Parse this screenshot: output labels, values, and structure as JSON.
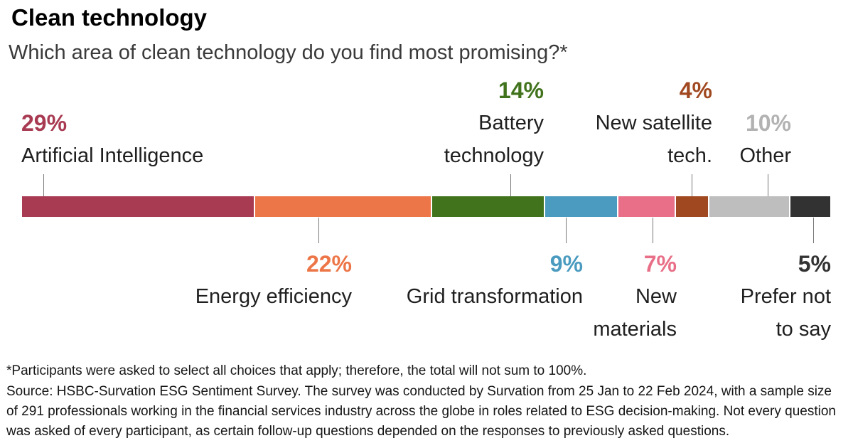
{
  "chart_data": {
    "type": "bar",
    "variant": "horizontal-stacked-single-bar",
    "title": "Clean technology",
    "subtitle": "Which area of clean technology do you find most promising?*",
    "unit": "%",
    "categories": [
      "Artificial Intelligence",
      "Energy efficiency",
      "Battery technology",
      "Grid transformation",
      "New materials",
      "New satellite tech.",
      "Other",
      "Prefer not to say"
    ],
    "values": [
      29,
      22,
      14,
      9,
      7,
      4,
      10,
      5
    ],
    "legend_position": "none",
    "axes": "none",
    "grid": false,
    "label_positions": [
      "above",
      "below",
      "above",
      "below",
      "below",
      "above",
      "above",
      "below"
    ]
  },
  "segments": [
    {
      "name": "Artificial Intelligence",
      "value": 29,
      "pct_label": "29%",
      "color": "#a83a52",
      "label_color": "#a83a52",
      "lines": [
        "Artificial Intelligence"
      ]
    },
    {
      "name": "Energy efficiency",
      "value": 22,
      "pct_label": "22%",
      "color": "#ed7648",
      "label_color": "#ed7648",
      "lines": [
        "Energy efficiency"
      ]
    },
    {
      "name": "Battery technology",
      "value": 14,
      "pct_label": "14%",
      "color": "#41731d",
      "label_color": "#41731d",
      "lines": [
        "Battery",
        "technology"
      ]
    },
    {
      "name": "Grid transformation",
      "value": 9,
      "pct_label": "9%",
      "color": "#4a9bbf",
      "label_color": "#4a9bbf",
      "lines": [
        "Grid transformation"
      ]
    },
    {
      "name": "New materials",
      "value": 7,
      "pct_label": "7%",
      "color": "#e86f87",
      "label_color": "#e86f87",
      "lines": [
        "New",
        "materials"
      ]
    },
    {
      "name": "New satellite tech.",
      "value": 4,
      "pct_label": "4%",
      "color": "#a04820",
      "label_color": "#a04820",
      "lines": [
        "New satellite",
        "tech."
      ]
    },
    {
      "name": "Other",
      "value": 10,
      "pct_label": "10%",
      "color": "#bebebe",
      "label_color": "#b2b2b2",
      "lines": [
        "Other"
      ]
    },
    {
      "name": "Prefer not to say",
      "value": 5,
      "pct_label": "5%",
      "color": "#323232",
      "label_color": "#333333",
      "lines": [
        "Prefer not",
        "to say"
      ]
    }
  ],
  "footer": {
    "footnote": "*Participants were asked to select all choices that apply; therefore, the total will not sum to 100%.",
    "source_lines": [
      "Source: HSBC-Survation ESG Sentiment Survey. The survey was conducted by Survation from 25 Jan to 22 Feb 2024, with a sample size",
      "of 291 professionals working in the financial services industry across the globe in roles related to ESG decision-making. Not every question",
      "was asked of every participant, as certain follow-up questions depended on the responses to previously asked questions."
    ]
  }
}
